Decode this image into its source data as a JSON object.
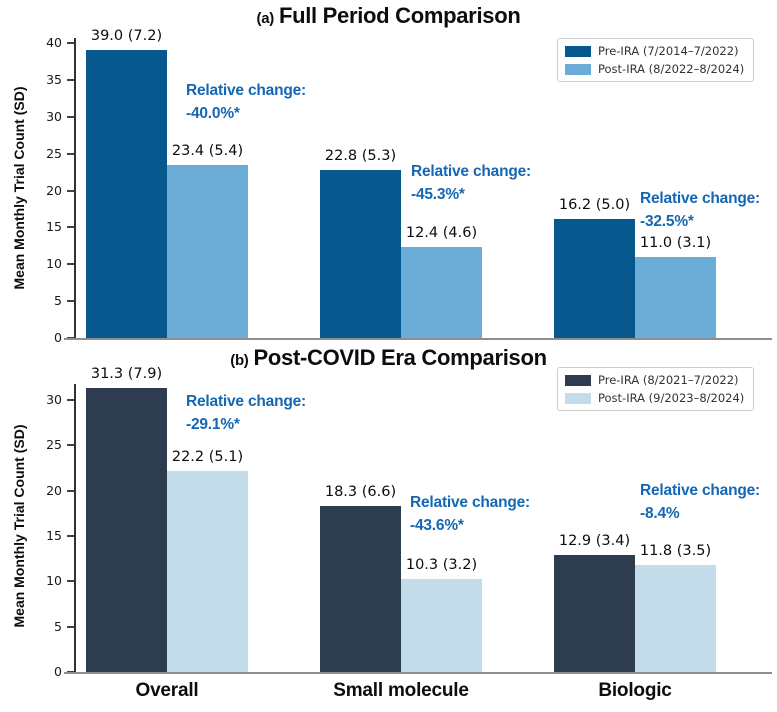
{
  "figure": {
    "background": "#ffffff",
    "annotation_color": "#1567b4",
    "axis_line_color": "#8e8e8e",
    "spine_color": "#333333",
    "text_color": "#0d0d0d"
  },
  "chart_data": [
    {
      "type": "bar",
      "panel": "a",
      "title_prefix": "(a)",
      "title": "Full Period Comparison",
      "ylabel": "Mean Monthly Trial Count (SD)",
      "xlabel": "",
      "ylim": [
        0,
        40
      ],
      "yticks": [
        0,
        5,
        10,
        15,
        20,
        25,
        30,
        35,
        40
      ],
      "grid": false,
      "legend_position": "upper right",
      "categories": [
        "Overall",
        "Small molecule",
        "Biologic"
      ],
      "series": [
        {
          "name": "Pre-IRA (7/2014–7/2022)",
          "color": "#06588f",
          "values": [
            39.0,
            22.8,
            16.2
          ],
          "sd": [
            7.2,
            5.3,
            5.0
          ],
          "labels": [
            "39.0 (7.2)",
            "22.8 (5.3)",
            "16.2 (5.0)"
          ]
        },
        {
          "name": "Post-IRA (8/2022–8/2024)",
          "color": "#6cadd8",
          "values": [
            23.4,
            12.4,
            11.0
          ],
          "sd": [
            5.4,
            4.6,
            3.1
          ],
          "labels": [
            "23.4 (5.4)",
            "12.4 (4.6)",
            "11.0 (3.1)"
          ]
        }
      ],
      "annotations": [
        {
          "heading": "Relative change:",
          "value": "-40.0%*"
        },
        {
          "heading": "Relative change:",
          "value": "-45.3%*"
        },
        {
          "heading": "Relative change:",
          "value": "-32.5%*"
        }
      ]
    },
    {
      "type": "bar",
      "panel": "b",
      "title_prefix": "(b)",
      "title": "Post-COVID Era Comparison",
      "ylabel": "Mean Monthly Trial Count (SD)",
      "xlabel": "",
      "ylim": [
        0,
        32
      ],
      "yticks": [
        0,
        5,
        10,
        15,
        20,
        25,
        30
      ],
      "grid": false,
      "legend_position": "upper right",
      "categories": [
        "Overall",
        "Small molecule",
        "Biologic"
      ],
      "series": [
        {
          "name": "Pre-IRA (8/2021–7/2022)",
          "color": "#2d3d4f",
          "values": [
            31.3,
            18.3,
            12.9
          ],
          "sd": [
            7.9,
            6.6,
            3.4
          ],
          "labels": [
            "31.3 (7.9)",
            "18.3 (6.6)",
            "12.9 (3.4)"
          ]
        },
        {
          "name": "Post-IRA (9/2023–8/2024)",
          "color": "#c3dcea",
          "values": [
            22.2,
            10.3,
            11.8
          ],
          "sd": [
            5.1,
            3.2,
            3.5
          ],
          "labels": [
            "22.2 (5.1)",
            "10.3 (3.2)",
            "11.8 (3.5)"
          ]
        }
      ],
      "annotations": [
        {
          "heading": "Relative change:",
          "value": "-29.1%*"
        },
        {
          "heading": "Relative change:",
          "value": "-43.6%*"
        },
        {
          "heading": "Relative change:",
          "value": "-8.4%"
        }
      ]
    }
  ]
}
